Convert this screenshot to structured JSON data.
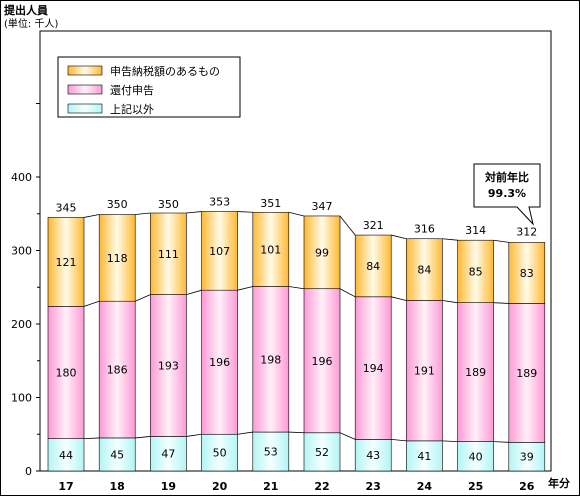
{
  "chart_data": {
    "type": "bar",
    "stacked": true,
    "title": "提出人員",
    "subtitle": "(単位: 千人)",
    "xlabel": "年分",
    "ylabel": "",
    "ylim": [
      0,
      400
    ],
    "yticks": [
      0,
      100,
      200,
      300,
      400
    ],
    "categories": [
      "17",
      "18",
      "19",
      "20",
      "21",
      "22",
      "23",
      "24",
      "25",
      "26"
    ],
    "series": [
      {
        "name": "上記以外",
        "color": "#ccffff",
        "values": [
          44,
          45,
          47,
          50,
          53,
          52,
          43,
          41,
          40,
          39
        ]
      },
      {
        "name": "還付申告",
        "color": "#ff99cc",
        "values": [
          180,
          186,
          193,
          196,
          198,
          196,
          194,
          191,
          189,
          189
        ]
      },
      {
        "name": "申告納税額のあるもの",
        "color": "#ffcc66",
        "values": [
          121,
          118,
          111,
          107,
          101,
          99,
          84,
          84,
          85,
          83
        ]
      }
    ],
    "totals": [
      345,
      350,
      350,
      353,
      351,
      347,
      321,
      316,
      314,
      312
    ],
    "legend": {
      "position": "top-left",
      "order": [
        "申告納税額のあるもの",
        "還付申告",
        "上記以外"
      ]
    },
    "grid": false,
    "callout": {
      "line1": "対前年比",
      "line2": "99.3%"
    }
  }
}
